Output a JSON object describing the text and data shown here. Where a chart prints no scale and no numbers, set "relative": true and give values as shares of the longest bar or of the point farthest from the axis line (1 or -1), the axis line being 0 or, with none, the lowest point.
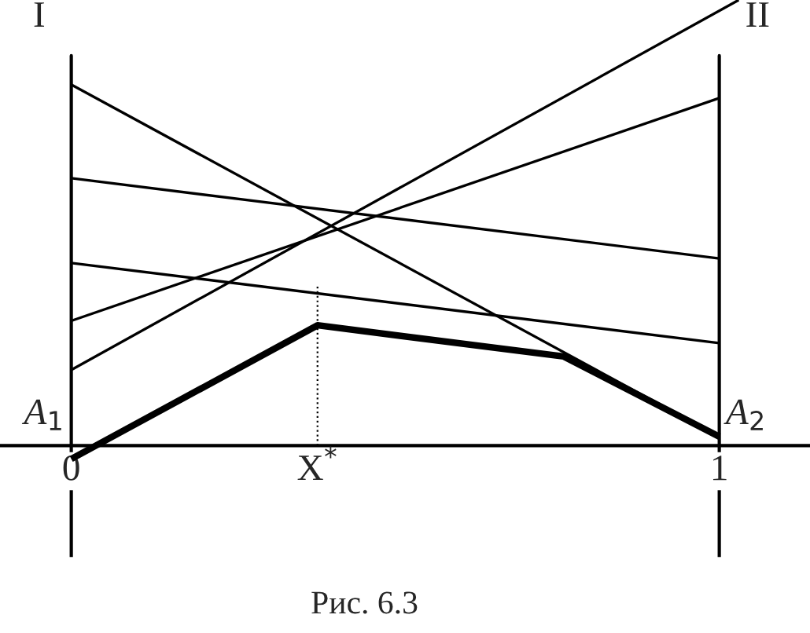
{
  "chart_data": {
    "type": "line",
    "relative": true,
    "color": "#000000",
    "series": [
      {
        "x": [
          0,
          1
        ],
        "values": [
          0.81,
          0.02
        ]
      },
      {
        "x": [
          0,
          1
        ],
        "values": [
          0.6,
          0.42
        ]
      },
      {
        "x": [
          0,
          1
        ],
        "values": [
          0.41,
          0.23
        ]
      },
      {
        "x": [
          0,
          1
        ],
        "values": [
          0.28,
          0.78
        ]
      },
      {
        "x": [
          0,
          1.03
        ],
        "values": [
          0.17,
          1.0
        ]
      },
      {
        "x": [
          0.38,
          0.38
        ],
        "values": [
          0,
          0.36
        ],
        "line_style": "dotted"
      },
      {
        "x": [
          0,
          0.38,
          0.76,
          1
        ],
        "values": [
          -0.03,
          0.27,
          0.2,
          0.02
        ]
      }
    ],
    "xlim": [
      -0.11,
      1.14
    ],
    "xticks": [
      {
        "value": 0,
        "label": "0"
      },
      {
        "value": 0.38,
        "label": "X$^{*}$"
      },
      {
        "value": 1,
        "label": "1"
      }
    ],
    "ref_lines": [
      {
        "axis": "x",
        "value": 0,
        "label": "I"
      },
      {
        "axis": "x",
        "value": 1,
        "label": "II"
      }
    ],
    "annotations": [
      {
        "text": "A$_{1}$",
        "x": 0,
        "y": 0
      },
      {
        "text": "A$_{2}$",
        "x": 1,
        "y": 0
      },
      "Рис. 6.3"
    ],
    "grid": false,
    "legend": false
  }
}
